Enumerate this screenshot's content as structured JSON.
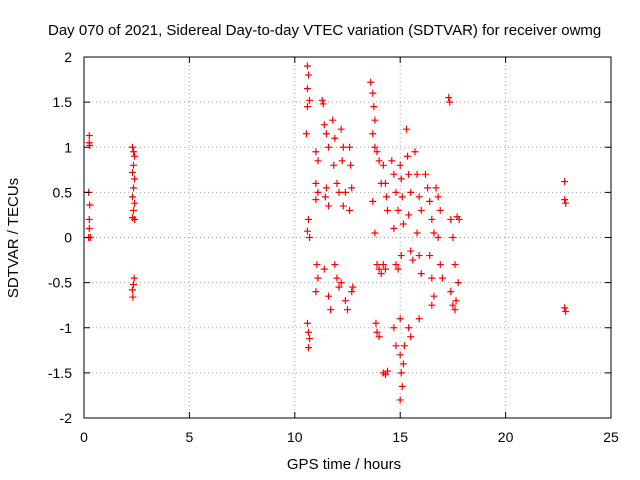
{
  "chart_data": {
    "type": "scatter",
    "title": "Day 070 of 2021, Sidereal Day-to-day VTEC variation (SDTVAR) for receiver owmg",
    "xlabel": "GPS time / hours",
    "ylabel": "SDTVAR / TECUs",
    "xlim": [
      0,
      25
    ],
    "ylim": [
      -2,
      2
    ],
    "xticks": [
      0,
      5,
      10,
      15,
      20,
      25
    ],
    "yticks": [
      -2,
      -1.5,
      -1,
      -0.5,
      0,
      0.5,
      1,
      1.5,
      2
    ],
    "ytick_labels": [
      "-2",
      "-1.5",
      "-1",
      "-0.5",
      "0",
      "0.5",
      "1",
      "1.5",
      "2"
    ],
    "grid": true,
    "marker": "+",
    "color": "#ff0000",
    "series": [
      {
        "name": "SDTVAR",
        "points": [
          [
            0.25,
            1.13
          ],
          [
            0.25,
            1.05
          ],
          [
            0.28,
            1.02
          ],
          [
            0.22,
            0.5
          ],
          [
            0.27,
            0.36
          ],
          [
            0.25,
            0.2
          ],
          [
            0.25,
            0.1
          ],
          [
            0.22,
            0.0
          ],
          [
            0.3,
            0.0
          ],
          [
            2.3,
            1.0
          ],
          [
            2.35,
            0.95
          ],
          [
            2.4,
            0.9
          ],
          [
            2.35,
            0.8
          ],
          [
            2.3,
            0.72
          ],
          [
            2.4,
            0.65
          ],
          [
            2.35,
            0.55
          ],
          [
            2.3,
            0.45
          ],
          [
            2.4,
            0.38
          ],
          [
            2.35,
            0.3
          ],
          [
            2.3,
            0.22
          ],
          [
            2.4,
            0.2
          ],
          [
            2.38,
            -0.45
          ],
          [
            2.35,
            -0.52
          ],
          [
            2.3,
            -0.58
          ],
          [
            2.32,
            -0.66
          ],
          [
            10.6,
            1.9
          ],
          [
            10.65,
            1.8
          ],
          [
            10.6,
            1.65
          ],
          [
            10.7,
            1.52
          ],
          [
            10.6,
            1.45
          ],
          [
            10.55,
            1.15
          ],
          [
            10.65,
            0.2
          ],
          [
            10.6,
            0.07
          ],
          [
            10.7,
            0.0
          ],
          [
            10.6,
            -0.95
          ],
          [
            10.65,
            -1.05
          ],
          [
            10.7,
            -1.12
          ],
          [
            10.65,
            -1.22
          ],
          [
            11.0,
            0.95
          ],
          [
            11.1,
            0.85
          ],
          [
            11.0,
            0.6
          ],
          [
            11.1,
            0.5
          ],
          [
            11.0,
            0.42
          ],
          [
            11.05,
            -0.3
          ],
          [
            11.1,
            -0.45
          ],
          [
            11.0,
            -0.6
          ],
          [
            11.3,
            1.52
          ],
          [
            11.35,
            1.48
          ],
          [
            11.4,
            1.25
          ],
          [
            11.5,
            1.15
          ],
          [
            11.6,
            1.0
          ],
          [
            11.5,
            0.55
          ],
          [
            11.45,
            0.45
          ],
          [
            11.6,
            0.35
          ],
          [
            11.4,
            -0.35
          ],
          [
            11.6,
            -0.65
          ],
          [
            11.7,
            -0.8
          ],
          [
            11.8,
            1.3
          ],
          [
            11.9,
            1.1
          ],
          [
            11.85,
            0.8
          ],
          [
            12.0,
            0.6
          ],
          [
            12.1,
            0.5
          ],
          [
            11.9,
            -0.3
          ],
          [
            12.0,
            -0.45
          ],
          [
            12.1,
            -0.55
          ],
          [
            12.2,
            1.2
          ],
          [
            12.3,
            1.0
          ],
          [
            12.25,
            0.85
          ],
          [
            12.4,
            0.5
          ],
          [
            12.3,
            0.35
          ],
          [
            12.2,
            -0.5
          ],
          [
            12.4,
            -0.7
          ],
          [
            12.5,
            -0.8
          ],
          [
            12.6,
            1.0
          ],
          [
            12.65,
            0.8
          ],
          [
            12.7,
            0.55
          ],
          [
            12.6,
            0.3
          ],
          [
            12.75,
            -0.55
          ],
          [
            12.7,
            -0.6
          ],
          [
            13.6,
            1.72
          ],
          [
            13.7,
            1.6
          ],
          [
            13.75,
            1.45
          ],
          [
            13.8,
            1.3
          ],
          [
            13.7,
            1.15
          ],
          [
            13.8,
            1.0
          ],
          [
            13.9,
            0.95
          ],
          [
            14.0,
            0.85
          ],
          [
            14.1,
            0.6
          ],
          [
            13.7,
            0.4
          ],
          [
            13.8,
            0.05
          ],
          [
            13.9,
            -0.3
          ],
          [
            14.0,
            -0.35
          ],
          [
            14.1,
            -0.4
          ],
          [
            13.85,
            -0.95
          ],
          [
            13.9,
            -1.05
          ],
          [
            14.0,
            -1.1
          ],
          [
            14.2,
            0.8
          ],
          [
            14.3,
            0.6
          ],
          [
            14.35,
            0.45
          ],
          [
            14.4,
            0.3
          ],
          [
            14.2,
            -0.3
          ],
          [
            14.3,
            -0.35
          ],
          [
            14.2,
            -1.5
          ],
          [
            14.3,
            -1.52
          ],
          [
            14.4,
            -1.48
          ],
          [
            14.6,
            0.85
          ],
          [
            14.7,
            0.7
          ],
          [
            14.8,
            0.5
          ],
          [
            14.9,
            0.3
          ],
          [
            14.7,
            0.1
          ],
          [
            14.8,
            -0.3
          ],
          [
            14.9,
            -0.35
          ],
          [
            14.7,
            -1.0
          ],
          [
            14.8,
            -1.2
          ],
          [
            15.0,
            0.8
          ],
          [
            15.05,
            0.65
          ],
          [
            15.1,
            0.45
          ],
          [
            15.15,
            0.15
          ],
          [
            15.05,
            -0.2
          ],
          [
            15.0,
            -0.9
          ],
          [
            15.0,
            -1.3
          ],
          [
            15.05,
            -1.5
          ],
          [
            15.0,
            -1.8
          ],
          [
            15.1,
            -1.65
          ],
          [
            15.15,
            -1.4
          ],
          [
            15.2,
            -1.2
          ],
          [
            15.3,
            1.2
          ],
          [
            15.35,
            0.9
          ],
          [
            15.4,
            0.7
          ],
          [
            15.5,
            0.5
          ],
          [
            15.4,
            0.25
          ],
          [
            15.5,
            -0.15
          ],
          [
            15.6,
            -0.25
          ],
          [
            15.4,
            -1.0
          ],
          [
            15.5,
            -1.1
          ],
          [
            15.7,
            0.95
          ],
          [
            15.8,
            0.7
          ],
          [
            15.9,
            0.45
          ],
          [
            16.0,
            0.3
          ],
          [
            15.8,
            0.05
          ],
          [
            15.9,
            -0.2
          ],
          [
            16.0,
            -0.4
          ],
          [
            15.9,
            -0.9
          ],
          [
            16.2,
            0.7
          ],
          [
            16.3,
            0.55
          ],
          [
            16.4,
            0.4
          ],
          [
            16.5,
            0.2
          ],
          [
            16.6,
            0.05
          ],
          [
            16.4,
            -0.2
          ],
          [
            16.5,
            -0.45
          ],
          [
            16.6,
            -0.65
          ],
          [
            16.5,
            -0.75
          ],
          [
            16.7,
            0.55
          ],
          [
            16.8,
            0.45
          ],
          [
            16.9,
            0.3
          ],
          [
            16.8,
            0.0
          ],
          [
            16.9,
            -0.3
          ],
          [
            17.0,
            -0.45
          ],
          [
            17.3,
            1.55
          ],
          [
            17.35,
            1.5
          ],
          [
            17.4,
            0.2
          ],
          [
            17.5,
            0.0
          ],
          [
            17.6,
            -0.3
          ],
          [
            17.4,
            -0.6
          ],
          [
            17.5,
            -0.75
          ],
          [
            17.6,
            -0.8
          ],
          [
            17.65,
            -0.7
          ],
          [
            17.7,
            0.23
          ],
          [
            17.8,
            0.2
          ],
          [
            17.75,
            -0.5
          ],
          [
            22.8,
            0.62
          ],
          [
            22.8,
            0.42
          ],
          [
            22.85,
            0.38
          ],
          [
            22.8,
            -0.78
          ],
          [
            22.85,
            -0.82
          ]
        ]
      }
    ]
  }
}
